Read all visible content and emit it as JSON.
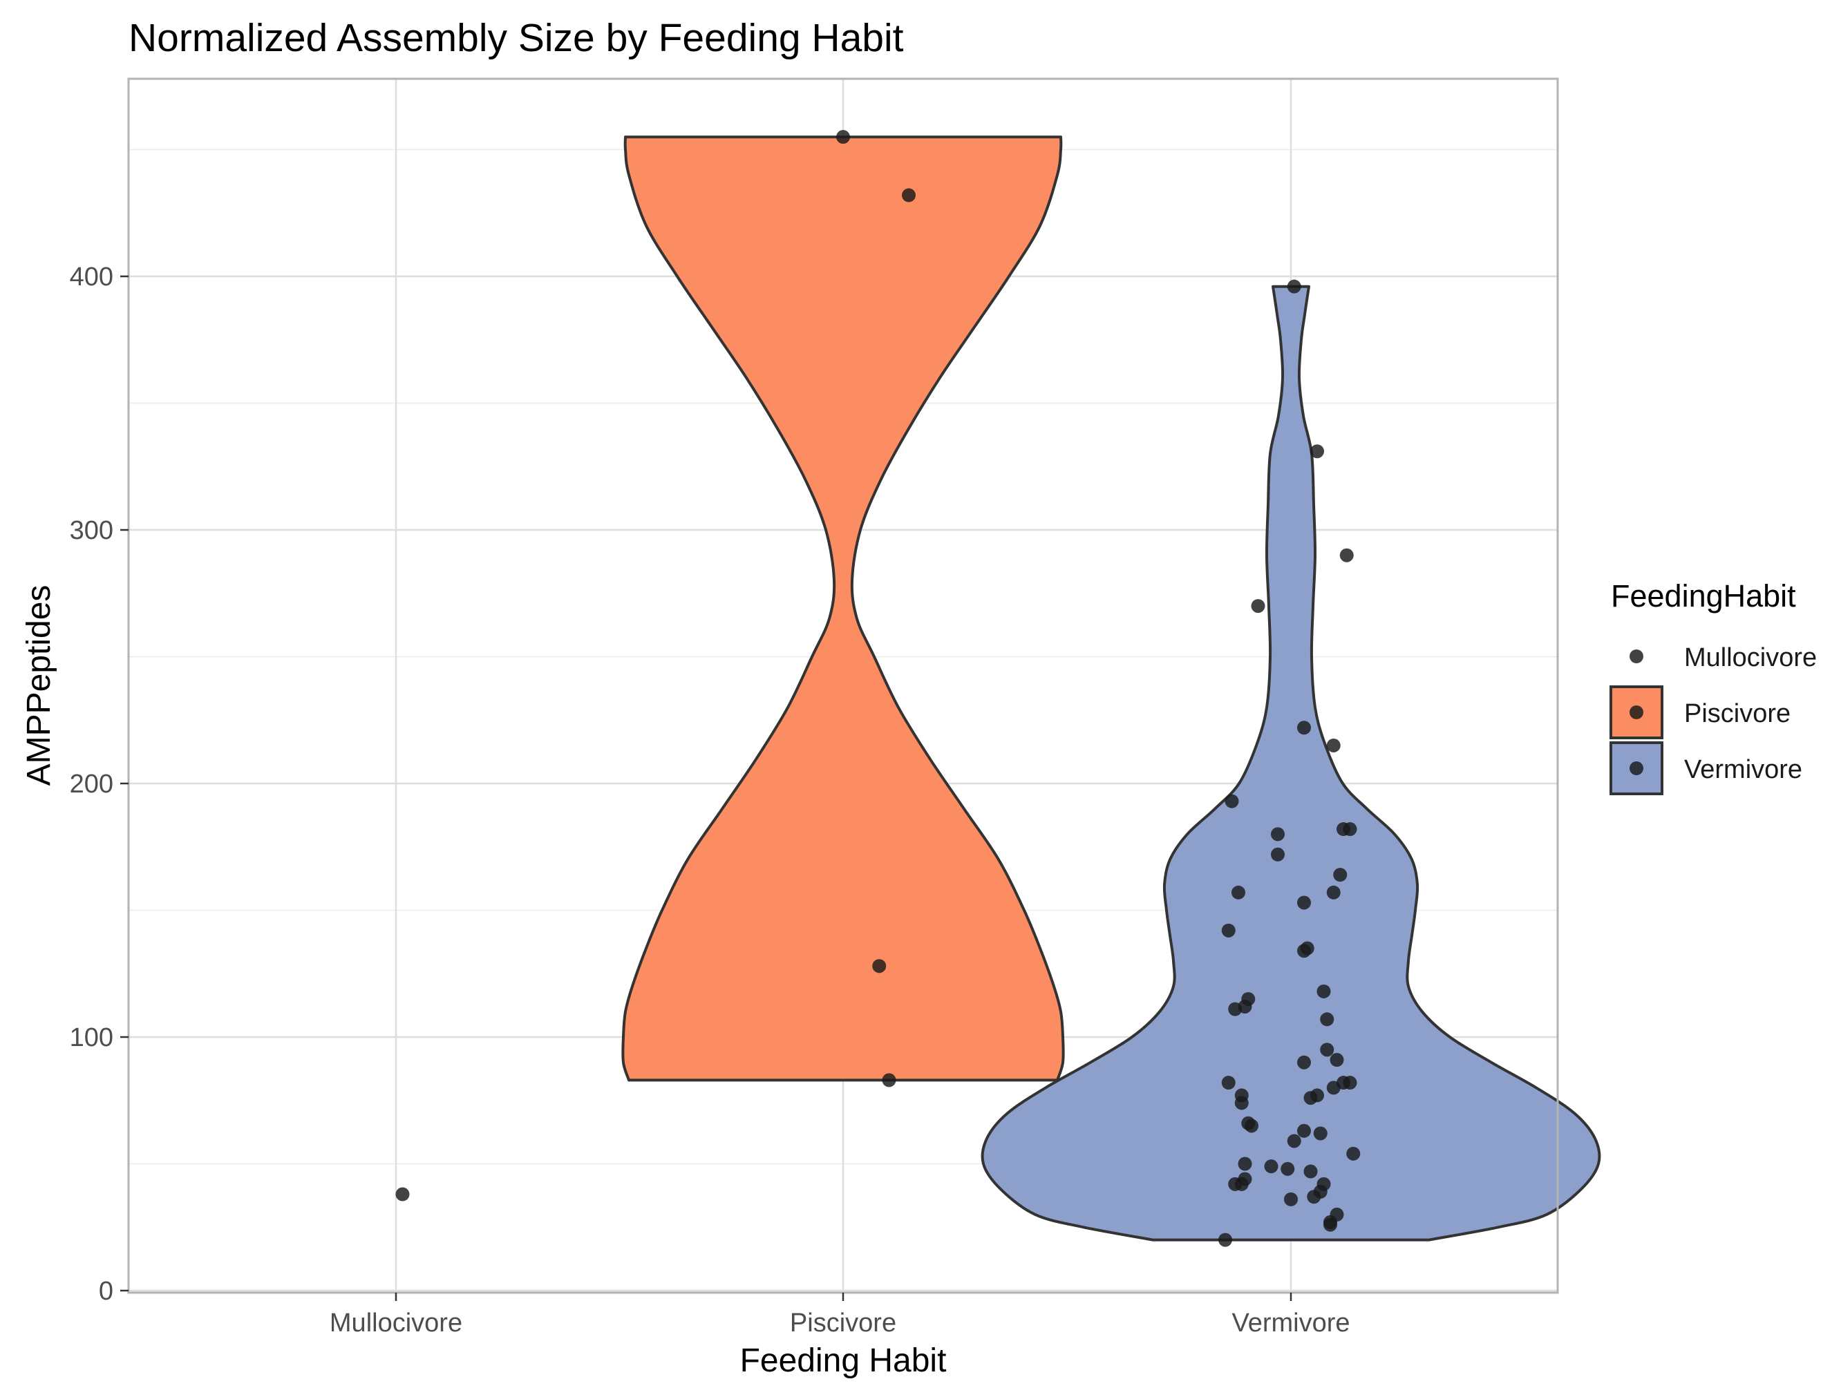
{
  "chart_data": {
    "type": "violin",
    "title": "Normalized Assembly Size by Feeding Habit",
    "xlabel": "Feeding Habit",
    "ylabel": "AMPPeptides",
    "categories": [
      "Mullocivore",
      "Piscivore",
      "Vermivore"
    ],
    "ylim": [
      -2,
      456
    ],
    "yticks": [
      0,
      100,
      200,
      300,
      400
    ],
    "grid": true,
    "legend": {
      "title": "FeedingHabit",
      "position": "right",
      "entries": [
        {
          "label": "Mullocivore",
          "color": "#ffffff",
          "boxed": false
        },
        {
          "label": "Piscivore",
          "color": "#fc8d62",
          "boxed": true
        },
        {
          "label": "Vermivore",
          "color": "#8da0cb",
          "boxed": true
        }
      ]
    },
    "series": [
      {
        "name": "Mullocivore",
        "fill": "#ffffff",
        "violin": null,
        "points": [
          {
            "jitter": 0.01,
            "value": 38
          }
        ]
      },
      {
        "name": "Piscivore",
        "fill": "#fc8d62",
        "violin": {
          "range": [
            83,
            455
          ],
          "profile": [
            [
              83,
              0.31
            ],
            [
              90,
              0.318
            ],
            [
              100,
              0.318
            ],
            [
              110,
              0.315
            ],
            [
              120,
              0.305
            ],
            [
              135,
              0.285
            ],
            [
              150,
              0.262
            ],
            [
              170,
              0.225
            ],
            [
              190,
              0.175
            ],
            [
              210,
              0.125
            ],
            [
              230,
              0.08
            ],
            [
              250,
              0.045
            ],
            [
              265,
              0.02
            ],
            [
              280,
              0.013
            ],
            [
              300,
              0.025
            ],
            [
              320,
              0.055
            ],
            [
              340,
              0.095
            ],
            [
              360,
              0.14
            ],
            [
              380,
              0.19
            ],
            [
              400,
              0.24
            ],
            [
              420,
              0.285
            ],
            [
              440,
              0.31
            ],
            [
              450,
              0.315
            ],
            [
              455,
              0.315
            ]
          ]
        },
        "points": [
          {
            "jitter": 0.0,
            "value": 455
          },
          {
            "jitter": 0.1,
            "value": 432
          },
          {
            "jitter": 0.055,
            "value": 128
          },
          {
            "jitter": 0.07,
            "value": 83
          }
        ]
      },
      {
        "name": "Vermivore",
        "fill": "#8da0cb",
        "violin": {
          "range": [
            20,
            396
          ],
          "profile": [
            [
              20,
              0.2
            ],
            [
              25,
              0.3
            ],
            [
              30,
              0.37
            ],
            [
              40,
              0.42
            ],
            [
              50,
              0.445
            ],
            [
              60,
              0.44
            ],
            [
              70,
              0.41
            ],
            [
              80,
              0.355
            ],
            [
              90,
              0.29
            ],
            [
              100,
              0.23
            ],
            [
              110,
              0.19
            ],
            [
              120,
              0.17
            ],
            [
              130,
              0.17
            ],
            [
              140,
              0.175
            ],
            [
              150,
              0.18
            ],
            [
              160,
              0.183
            ],
            [
              170,
              0.175
            ],
            [
              180,
              0.15
            ],
            [
              190,
              0.11
            ],
            [
              200,
              0.075
            ],
            [
              215,
              0.05
            ],
            [
              230,
              0.035
            ],
            [
              250,
              0.03
            ],
            [
              270,
              0.032
            ],
            [
              290,
              0.035
            ],
            [
              310,
              0.033
            ],
            [
              330,
              0.03
            ],
            [
              345,
              0.018
            ],
            [
              360,
              0.012
            ],
            [
              375,
              0.015
            ],
            [
              385,
              0.02
            ],
            [
              396,
              0.026
            ]
          ]
        },
        "points": [
          {
            "jitter": 0.005,
            "value": 396
          },
          {
            "jitter": 0.04,
            "value": 331
          },
          {
            "jitter": 0.085,
            "value": 290
          },
          {
            "jitter": -0.05,
            "value": 270
          },
          {
            "jitter": 0.02,
            "value": 222
          },
          {
            "jitter": 0.065,
            "value": 215
          },
          {
            "jitter": -0.09,
            "value": 193
          },
          {
            "jitter": 0.08,
            "value": 182
          },
          {
            "jitter": 0.09,
            "value": 182
          },
          {
            "jitter": -0.02,
            "value": 180
          },
          {
            "jitter": -0.02,
            "value": 172
          },
          {
            "jitter": 0.075,
            "value": 164
          },
          {
            "jitter": -0.08,
            "value": 157
          },
          {
            "jitter": 0.065,
            "value": 157
          },
          {
            "jitter": 0.02,
            "value": 153
          },
          {
            "jitter": -0.095,
            "value": 142
          },
          {
            "jitter": 0.025,
            "value": 135
          },
          {
            "jitter": 0.02,
            "value": 134
          },
          {
            "jitter": 0.05,
            "value": 118
          },
          {
            "jitter": -0.065,
            "value": 115
          },
          {
            "jitter": -0.07,
            "value": 112
          },
          {
            "jitter": -0.085,
            "value": 111
          },
          {
            "jitter": 0.055,
            "value": 107
          },
          {
            "jitter": 0.055,
            "value": 95
          },
          {
            "jitter": 0.07,
            "value": 91
          },
          {
            "jitter": 0.02,
            "value": 90
          },
          {
            "jitter": -0.095,
            "value": 82
          },
          {
            "jitter": 0.08,
            "value": 82
          },
          {
            "jitter": 0.09,
            "value": 82
          },
          {
            "jitter": 0.065,
            "value": 80
          },
          {
            "jitter": -0.075,
            "value": 77
          },
          {
            "jitter": 0.04,
            "value": 77
          },
          {
            "jitter": 0.03,
            "value": 76
          },
          {
            "jitter": -0.075,
            "value": 74
          },
          {
            "jitter": -0.065,
            "value": 66
          },
          {
            "jitter": -0.06,
            "value": 65
          },
          {
            "jitter": 0.02,
            "value": 63
          },
          {
            "jitter": 0.045,
            "value": 62
          },
          {
            "jitter": 0.005,
            "value": 59
          },
          {
            "jitter": 0.095,
            "value": 54
          },
          {
            "jitter": -0.07,
            "value": 50
          },
          {
            "jitter": -0.03,
            "value": 49
          },
          {
            "jitter": -0.005,
            "value": 48
          },
          {
            "jitter": 0.03,
            "value": 47
          },
          {
            "jitter": -0.07,
            "value": 44
          },
          {
            "jitter": -0.085,
            "value": 42
          },
          {
            "jitter": -0.075,
            "value": 42
          },
          {
            "jitter": 0.05,
            "value": 42
          },
          {
            "jitter": 0.045,
            "value": 39
          },
          {
            "jitter": 0.035,
            "value": 37
          },
          {
            "jitter": 0.0,
            "value": 36
          },
          {
            "jitter": 0.07,
            "value": 30
          },
          {
            "jitter": 0.06,
            "value": 27
          },
          {
            "jitter": 0.06,
            "value": 26
          },
          {
            "jitter": -0.1,
            "value": 20
          }
        ]
      }
    ]
  }
}
